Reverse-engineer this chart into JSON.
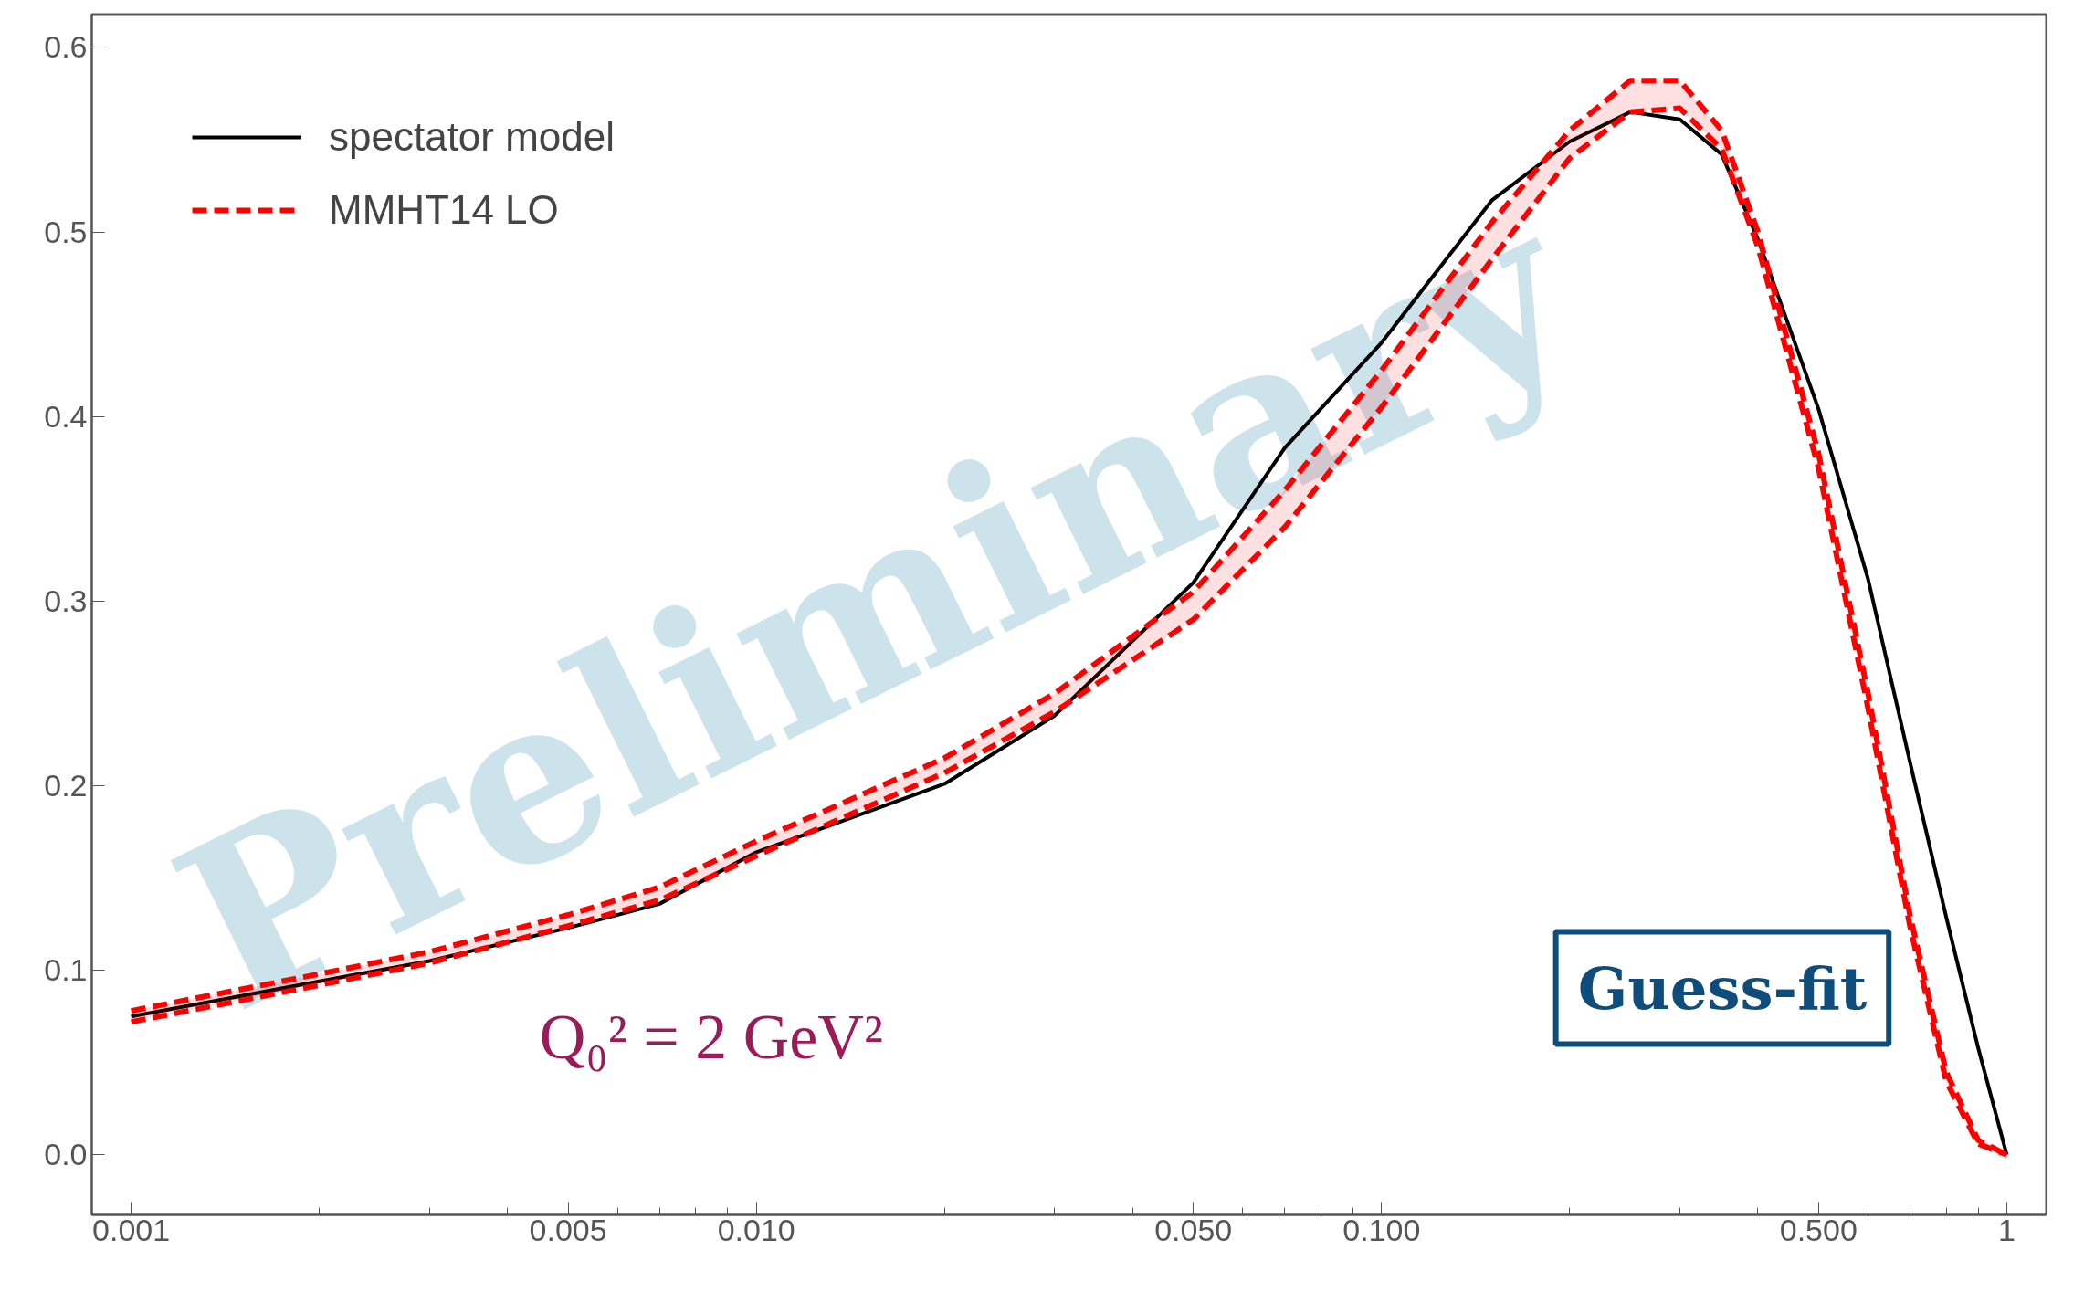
{
  "chart_data": {
    "type": "line",
    "log": "x",
    "x": [
      0.001,
      0.002,
      0.003,
      0.005,
      0.007,
      0.01,
      0.02,
      0.03,
      0.05,
      0.07,
      0.1,
      0.15,
      0.2,
      0.25,
      0.3,
      0.35,
      0.4,
      0.5,
      0.6,
      0.7,
      0.8,
      0.9,
      1.0
    ],
    "series": [
      {
        "name": "spectator model",
        "color": "#000000",
        "line_style": "solid",
        "values": [
          0.075,
          0.094,
          0.105,
          0.123,
          0.136,
          0.164,
          0.201,
          0.238,
          0.31,
          0.383,
          0.44,
          0.517,
          0.549,
          0.565,
          0.561,
          0.542,
          0.496,
          0.404,
          0.312,
          0.213,
          0.129,
          0.058,
          0.0
        ]
      },
      {
        "name": "MMHT14 LO",
        "color": "#ff0000",
        "line_style": "dashed",
        "values": [
          0.078,
          0.098,
          0.11,
          0.13,
          0.145,
          0.17,
          0.215,
          0.25,
          0.305,
          0.36,
          0.425,
          0.505,
          0.555,
          0.582,
          0.582,
          0.555,
          0.5,
          0.38,
          0.25,
          0.13,
          0.045,
          0.008,
          0.0
        ]
      },
      {
        "color": "#ff0000",
        "line_style": "dashed",
        "values": [
          0.072,
          0.092,
          0.104,
          0.124,
          0.138,
          0.162,
          0.207,
          0.24,
          0.29,
          0.34,
          0.405,
          0.485,
          0.54,
          0.565,
          0.567,
          0.545,
          0.492,
          0.372,
          0.242,
          0.124,
          0.04,
          0.006,
          0.0
        ]
      }
    ],
    "xlim": [
      0.000865,
      1.156
    ],
    "ylim": [
      -0.0325,
      0.618
    ],
    "xticks": [
      {
        "value": 0.001,
        "label": "0.001"
      },
      {
        "value": 0.002,
        "label": null
      },
      {
        "value": 0.003,
        "label": null
      },
      {
        "value": 0.004,
        "label": null
      },
      {
        "value": 0.005,
        "label": "0.005"
      },
      {
        "value": 0.006,
        "label": null
      },
      {
        "value": 0.007,
        "label": null
      },
      {
        "value": 0.008,
        "label": null
      },
      {
        "value": 0.009,
        "label": null
      },
      {
        "value": 0.01,
        "label": "0.010"
      },
      {
        "value": 0.02,
        "label": null
      },
      {
        "value": 0.03,
        "label": null
      },
      {
        "value": 0.04,
        "label": null
      },
      {
        "value": 0.05,
        "label": "0.050"
      },
      {
        "value": 0.06,
        "label": null
      },
      {
        "value": 0.07,
        "label": null
      },
      {
        "value": 0.08,
        "label": null
      },
      {
        "value": 0.09,
        "label": null
      },
      {
        "value": 0.1,
        "label": "0.100"
      },
      {
        "value": 0.2,
        "label": null
      },
      {
        "value": 0.3,
        "label": null
      },
      {
        "value": 0.4,
        "label": null
      },
      {
        "value": 0.5,
        "label": "0.500"
      },
      {
        "value": 0.6,
        "label": null
      },
      {
        "value": 0.7,
        "label": null
      },
      {
        "value": 0.8,
        "label": null
      },
      {
        "value": 0.9,
        "label": null
      },
      {
        "value": 1,
        "label": "1"
      }
    ],
    "yticks": [
      {
        "value": 0.0,
        "label": "0.0"
      },
      {
        "value": 0.1,
        "label": "0.1"
      },
      {
        "value": 0.2,
        "label": "0.2"
      },
      {
        "value": 0.3,
        "label": "0.3"
      },
      {
        "value": 0.4,
        "label": "0.4"
      },
      {
        "value": 0.5,
        "label": "0.5"
      },
      {
        "value": 0.6,
        "label": "0.6"
      }
    ],
    "grid": false,
    "legend": "top left",
    "annotations": [
      "Preliminary",
      "Q₀² = 2 GeV²",
      "Guess-fit"
    ]
  }
}
